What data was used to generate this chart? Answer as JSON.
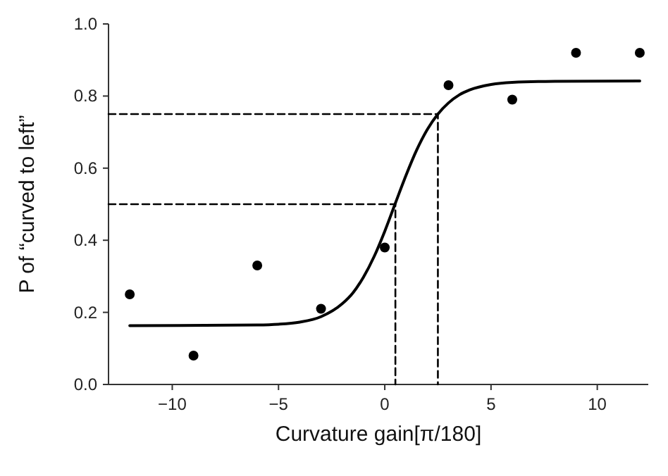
{
  "chart_data": {
    "type": "scatter",
    "xlabel": "Curvature gain[π/180]",
    "ylabel": "P of “curved to left”",
    "xlim": [
      -13,
      12.4
    ],
    "ylim": [
      0,
      1
    ],
    "xticks": [
      {
        "value": -10,
        "label": "−10"
      },
      {
        "value": -5,
        "label": "−5"
      },
      0,
      5,
      10
    ],
    "yticks": [
      {
        "value": 0,
        "label": "0.0"
      },
      {
        "value": 0.2,
        "label": "0.2"
      },
      {
        "value": 0.4,
        "label": "0.4"
      },
      {
        "value": 0.6,
        "label": "0.6"
      },
      {
        "value": 0.8,
        "label": "0.8"
      },
      {
        "value": 1,
        "label": "1.0"
      }
    ],
    "grid": false,
    "marker": "circle",
    "series": [
      {
        "color": "#000000",
        "x": [
          -12,
          -9,
          -6,
          -3,
          0,
          3,
          6,
          9,
          12
        ],
        "values": [
          0.25,
          0.08,
          0.33,
          0.21,
          0.38,
          0.83,
          0.79,
          0.92,
          0.92
        ]
      },
      {
        "type": "line",
        "color": "#000000",
        "line_style": "solid",
        "marker": "none",
        "x": [
          -12,
          -6,
          -5,
          -4,
          -3,
          -2,
          -1.5,
          -1,
          -0.5,
          0,
          0.5,
          1,
          1.5,
          2,
          2.5,
          3,
          3.5,
          4,
          5,
          6,
          8,
          12
        ],
        "values": [
          0.163,
          0.165,
          0.167,
          0.173,
          0.188,
          0.224,
          0.254,
          0.298,
          0.355,
          0.425,
          0.503,
          0.58,
          0.65,
          0.707,
          0.75,
          0.781,
          0.803,
          0.817,
          0.832,
          0.838,
          0.841,
          0.842
        ]
      },
      {
        "type": "line",
        "color": "#000000",
        "line_style": "dashed",
        "marker": "none",
        "x": [
          -13,
          0.5,
          0.5
        ],
        "values": [
          0.5,
          0.5,
          0
        ]
      },
      {
        "type": "line",
        "color": "#000000",
        "line_style": "dashed",
        "marker": "none",
        "x": [
          -13,
          2.5,
          2.5
        ],
        "values": [
          0.75,
          0.75,
          0
        ]
      }
    ]
  }
}
